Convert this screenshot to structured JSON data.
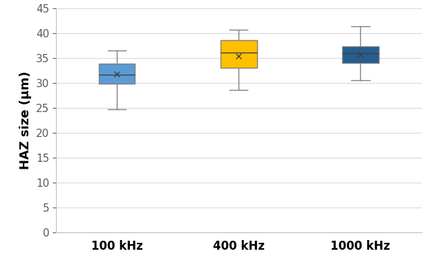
{
  "chart_data": {
    "type": "box",
    "categories": [
      "100 kHz",
      "400 kHz",
      "1000 kHz"
    ],
    "y_label": "HAZ size (μm)",
    "boxes": [
      {
        "whislo": 24.7,
        "q1": 29.8,
        "med": 31.6,
        "q3": 33.9,
        "whishi": 36.5,
        "mean": 31.7
      },
      {
        "whislo": 28.6,
        "q1": 33.0,
        "med": 36.0,
        "q3": 38.6,
        "whishi": 40.7,
        "mean": 35.4
      },
      {
        "whislo": 30.5,
        "q1": 34.0,
        "med": 35.9,
        "q3": 37.3,
        "whishi": 41.4,
        "mean": 35.7
      }
    ],
    "colors": [
      "#5b9bd5",
      "#ffc000",
      "#255e91"
    ],
    "marker": "x",
    "ylim": [
      0,
      45
    ],
    "yticks": [
      0,
      5,
      10,
      15,
      20,
      25,
      30,
      35,
      40,
      45
    ],
    "grid": true
  }
}
